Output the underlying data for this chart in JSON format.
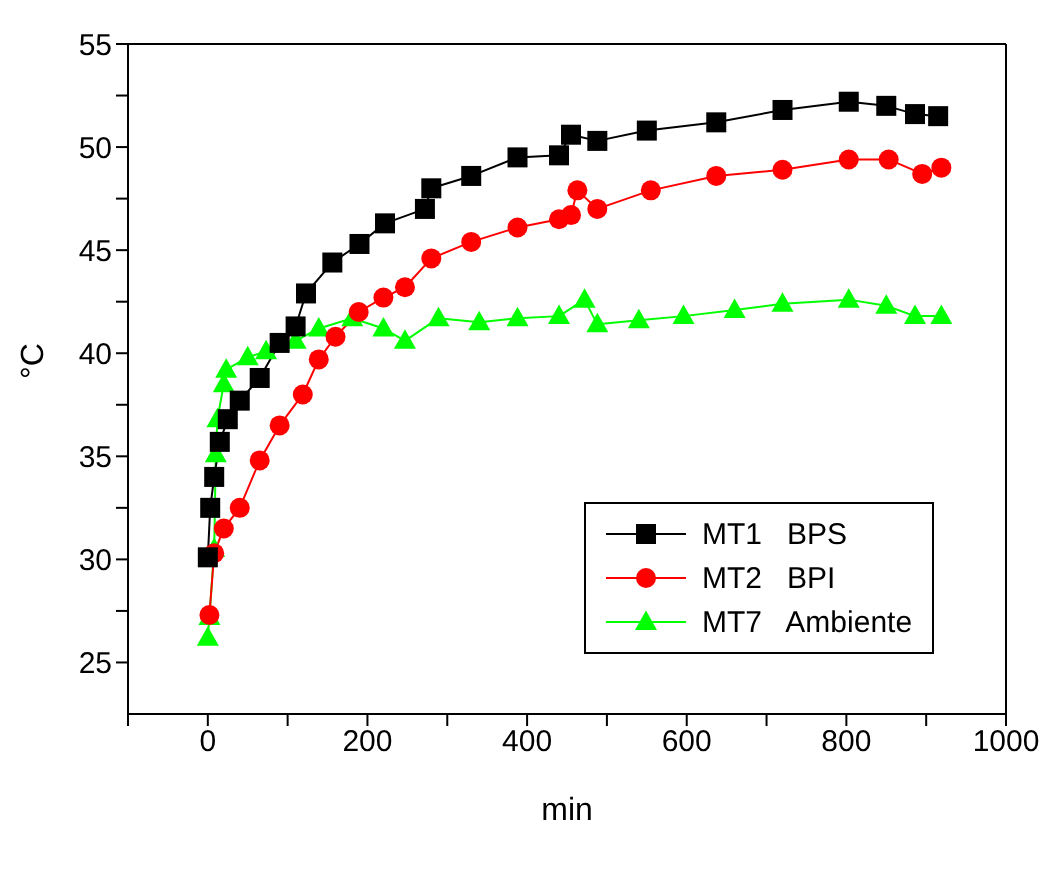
{
  "chart_data": {
    "type": "line",
    "xlabel": "min",
    "ylabel": "°C",
    "xlim": [
      -100,
      1000
    ],
    "ylim": [
      22.5,
      55
    ],
    "xticks": [
      {
        "value": -100,
        "label": null
      },
      0,
      {
        "value": 100,
        "label": null
      },
      200,
      {
        "value": 300,
        "label": null
      },
      400,
      {
        "value": 500,
        "label": null
      },
      600,
      {
        "value": 700,
        "label": null
      },
      800,
      {
        "value": 900,
        "label": null
      },
      1000
    ],
    "yticks": [
      25,
      {
        "value": 27.5,
        "label": null
      },
      30,
      {
        "value": 32.5,
        "label": null
      },
      35,
      {
        "value": 37.5,
        "label": null
      },
      40,
      {
        "value": 42.5,
        "label": null
      },
      45,
      {
        "value": 47.5,
        "label": null
      },
      50,
      {
        "value": 52.5,
        "label": null
      },
      55
    ],
    "legend": "right",
    "line_style": "solid",
    "series": [
      {
        "name": "MT1   BPS",
        "color": "#000000",
        "marker": "square",
        "x": [
          0,
          3,
          8,
          15,
          25,
          40,
          65,
          90,
          110,
          123,
          156,
          190,
          222,
          272,
          280,
          330,
          388,
          440,
          455,
          488,
          550,
          637,
          720,
          803,
          850,
          886,
          915
        ],
        "values": [
          30.1,
          32.5,
          34,
          35.7,
          36.8,
          37.7,
          38.8,
          40.5,
          41.3,
          42.9,
          44.4,
          45.3,
          46.3,
          47,
          48,
          48.6,
          49.5,
          49.6,
          50.6,
          50.3,
          50.8,
          51.2,
          51.8,
          52.2,
          52,
          51.6,
          51.5
        ]
      },
      {
        "name": "MT2   BPI",
        "color": "#ff0000",
        "marker": "circle",
        "x": [
          2,
          8,
          20,
          40,
          65,
          90,
          119,
          139,
          160,
          189,
          220,
          247,
          280,
          330,
          388,
          440,
          455,
          463,
          488,
          555,
          637,
          720,
          803,
          853,
          895,
          919
        ],
        "values": [
          27.3,
          30.3,
          31.5,
          32.5,
          34.8,
          36.5,
          38,
          39.7,
          40.8,
          42,
          42.7,
          43.2,
          44.6,
          45.4,
          46.1,
          46.5,
          46.7,
          47.9,
          47,
          47.9,
          48.6,
          48.9,
          49.4,
          49.4,
          48.7,
          49
        ]
      },
      {
        "name": "MT7   Ambiente",
        "color": "#00ff00",
        "marker": "triangle",
        "x": [
          0,
          2,
          8,
          10,
          12,
          20,
          23,
          50,
          73,
          110,
          139,
          181,
          220,
          247,
          289,
          340,
          388,
          440,
          472,
          488,
          540,
          596,
          660,
          720,
          803,
          850,
          886,
          919
        ],
        "values": [
          26.2,
          27.2,
          30.5,
          35.1,
          36.8,
          38.5,
          39.2,
          39.8,
          40.1,
          40.6,
          41.2,
          41.7,
          41.2,
          40.6,
          41.7,
          41.5,
          41.7,
          41.8,
          42.6,
          41.4,
          41.6,
          41.8,
          42.1,
          42.4,
          42.6,
          42.3,
          41.8,
          41.8
        ]
      }
    ]
  }
}
